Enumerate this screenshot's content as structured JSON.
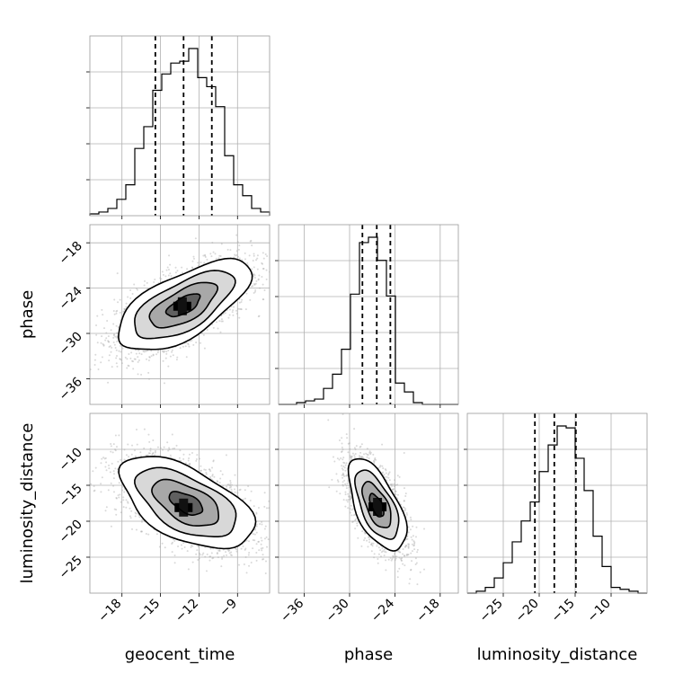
{
  "chart_data": {
    "type": "corner",
    "parameters": [
      "geocent_time",
      "phase",
      "luminosity_distance"
    ],
    "axis_labels": {
      "geocent_time": "geocent_time",
      "phase": "phase",
      "luminosity_distance": "luminosity_distance"
    },
    "ranges": {
      "geocent_time": [
        -20.5,
        -6.5
      ],
      "phase": [
        -39.4,
        -15.6
      ],
      "luminosity_distance": [
        -30,
        -5
      ]
    },
    "ticks": {
      "geocent_time": [
        -18,
        -15,
        -12,
        -9
      ],
      "phase": [
        -36,
        -30,
        -24,
        -18
      ],
      "luminosity_distance": [
        -25,
        -20,
        -15,
        -10
      ]
    },
    "tick_labels": {
      "geocent_time": [
        "−18",
        "−15",
        "−12",
        "−9"
      ],
      "phase": [
        "−36",
        "−30",
        "−24",
        "−18"
      ],
      "luminosity_distance": [
        "−25",
        "−20",
        "−15",
        "−10"
      ]
    },
    "quantiles": {
      "geocent_time": [
        -15.4,
        -13.2,
        -11.0
      ],
      "phase": [
        -28.3,
        -26.4,
        -24.6
      ],
      "luminosity_distance": [
        -20.6,
        -17.9,
        -14.9
      ]
    },
    "histograms": {
      "geocent_time": {
        "bin_edges": [
          -20.5,
          -19.8,
          -19.1,
          -18.4,
          -17.7,
          -17.0,
          -16.3,
          -15.6,
          -14.9,
          -14.2,
          -13.5,
          -12.8,
          -12.1,
          -11.4,
          -10.7,
          -10.0,
          -9.3,
          -8.6,
          -7.9,
          -7.2,
          -6.5
        ],
        "counts": [
          1,
          2,
          4,
          9,
          17,
          37,
          49,
          69,
          78,
          84,
          85,
          92,
          76,
          71,
          60,
          33,
          17,
          11,
          4,
          2
        ]
      },
      "phase": {
        "bin_edges": [
          -39.4,
          -38.21,
          -37.02,
          -35.83,
          -34.64,
          -33.45,
          -32.26,
          -31.07,
          -29.88,
          -28.69,
          -27.5,
          -26.31,
          -25.12,
          -23.93,
          -22.74,
          -21.55,
          -20.36,
          -19.17,
          -17.98,
          -16.79,
          -15.6
        ],
        "counts": [
          0,
          0,
          1,
          2,
          3,
          9,
          17,
          31,
          62,
          91,
          94,
          81,
          61,
          12,
          7,
          1,
          0,
          0,
          0,
          0
        ]
      },
      "luminosity_distance": {
        "bin_edges": [
          -30,
          -28.75,
          -27.5,
          -26.25,
          -25,
          -23.75,
          -22.5,
          -21.25,
          -20,
          -18.75,
          -17.5,
          -16.25,
          -15,
          -13.75,
          -12.5,
          -11.25,
          -10,
          -8.75,
          -7.5,
          -6.25,
          -5
        ],
        "counts": [
          0,
          1,
          3,
          8,
          16,
          27,
          38,
          48,
          64,
          78,
          88,
          87,
          71,
          54,
          30,
          14,
          3,
          2,
          1,
          0
        ]
      }
    },
    "pairs": [
      {
        "x": "geocent_time",
        "y": "phase",
        "center": [
          -13.2,
          -26.3
        ],
        "sigma": [
          2.6,
          3.0
        ],
        "correlation": 0.65,
        "contour_levels_sigma": [
          0.5,
          1.0,
          1.5,
          2.0
        ],
        "peak": [
          -13.3,
          -26.4
        ]
      },
      {
        "x": "geocent_time",
        "y": "luminosity_distance",
        "center": [
          -13.0,
          -17.5
        ],
        "sigma": [
          2.6,
          3.2
        ],
        "correlation": -0.55,
        "contour_levels_sigma": [
          0.5,
          1.0,
          1.5,
          2.0
        ],
        "peak": [
          -13.2,
          -18.1
        ]
      },
      {
        "x": "phase",
        "y": "luminosity_distance",
        "center": [
          -26.4,
          -17.8
        ],
        "sigma": [
          1.9,
          3.2
        ],
        "correlation": -0.6,
        "contour_levels_sigma": [
          0.5,
          1.0,
          1.5,
          2.0
        ],
        "peak": [
          -26.3,
          -18.0
        ]
      }
    ],
    "grid": true,
    "colors": {
      "line": "#000000",
      "points": "#aaaaaa",
      "grid": "#b0b0b0",
      "spine": "#999999"
    }
  }
}
